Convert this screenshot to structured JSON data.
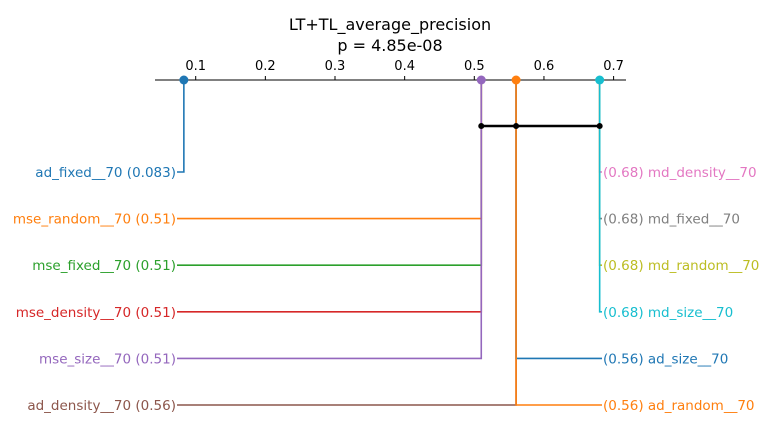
{
  "chart_data": {
    "type": "critical-difference",
    "title": "LT+TL_average_precision",
    "subtitle": "p = 4.85e-08",
    "axis": {
      "min": 0.04,
      "max": 0.72,
      "ticks": [
        0.1,
        0.2,
        0.3,
        0.4,
        0.5,
        0.6,
        0.7
      ],
      "tick_labels": [
        "0.1",
        "0.2",
        "0.3",
        "0.4",
        "0.5",
        "0.6",
        "0.7"
      ]
    },
    "left": [
      {
        "name": "ad_fixed__70",
        "value_label": "(0.083)",
        "color": "#1f77b4",
        "x": 0.083,
        "anchor": "ad_fixed"
      },
      {
        "name": "mse_random__70",
        "value_label": "(0.51)",
        "color": "#ff7f0e",
        "x": 0.51,
        "anchor": "mse"
      },
      {
        "name": "mse_fixed__70",
        "value_label": "(0.51)",
        "color": "#2ca02c",
        "x": 0.51,
        "anchor": "mse"
      },
      {
        "name": "mse_density__70",
        "value_label": "(0.51)",
        "color": "#d62728",
        "x": 0.51,
        "anchor": "mse"
      },
      {
        "name": "mse_size__70",
        "value_label": "(0.51)",
        "color": "#9467bd",
        "x": 0.51,
        "anchor": "mse"
      },
      {
        "name": "ad_density__70",
        "value_label": "(0.56)",
        "color": "#8c564b",
        "x": 0.56,
        "anchor": "ad"
      }
    ],
    "right": [
      {
        "name": "md_density__70",
        "value_label": "(0.68)",
        "color": "#e377c2",
        "x": 0.68,
        "anchor": "md"
      },
      {
        "name": "md_fixed__70",
        "value_label": "(0.68)",
        "color": "#7f7f7f",
        "x": 0.68,
        "anchor": "md"
      },
      {
        "name": "md_random__70",
        "value_label": "(0.68)",
        "color": "#bcbd22",
        "x": 0.68,
        "anchor": "md"
      },
      {
        "name": "md_size__70",
        "value_label": "(0.68)",
        "color": "#17becf",
        "x": 0.68,
        "anchor": "md"
      },
      {
        "name": "ad_size__70",
        "value_label": "(0.56)",
        "color": "#1f77b4",
        "x": 0.56,
        "anchor": "ad"
      },
      {
        "name": "ad_random__70",
        "value_label": "(0.56)",
        "color": "#ff7f0e",
        "x": 0.56,
        "anchor": "ad"
      }
    ],
    "anchors": [
      {
        "id": "ad_fixed",
        "x": 0.083,
        "color": "#1f77b4"
      },
      {
        "id": "mse",
        "x": 0.51,
        "color": "#9467bd"
      },
      {
        "id": "ad",
        "x": 0.56,
        "color": "#ff7f0e"
      },
      {
        "id": "md",
        "x": 0.68,
        "color": "#17becf"
      }
    ],
    "clique": {
      "x_start": 0.51,
      "x_end": 0.68,
      "points": [
        0.51,
        0.56,
        0.68
      ]
    }
  }
}
